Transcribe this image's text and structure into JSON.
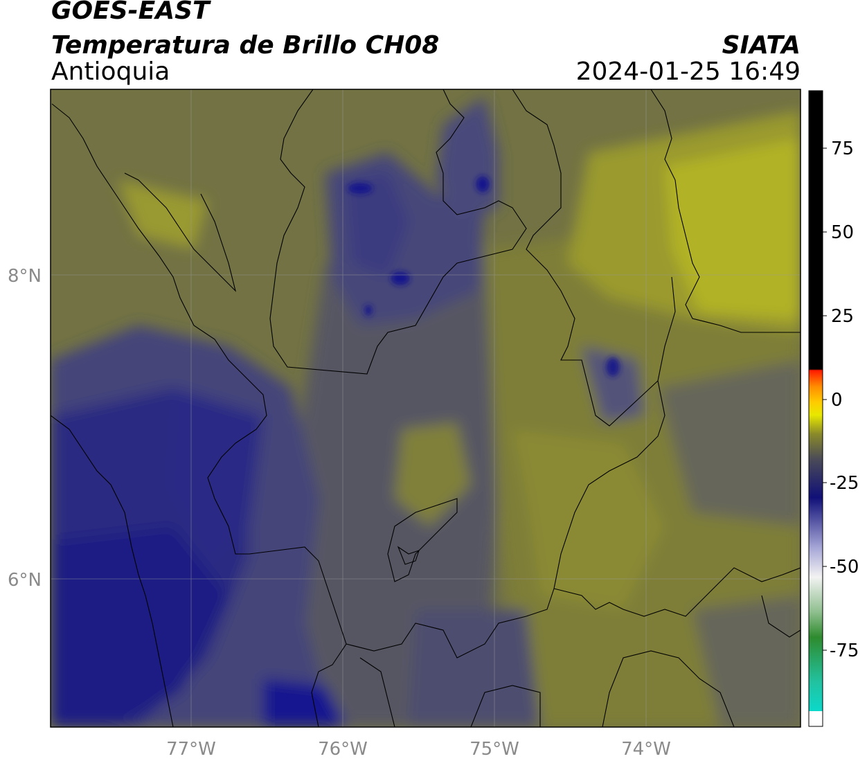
{
  "header": {
    "satellite": "GOES-EAST",
    "product": "Temperatura de Brillo CH08",
    "region": "Antioquia",
    "organization": "SIATA",
    "timestamp": "2024-01-25 16:49"
  },
  "map": {
    "lon_labels": [
      "77°W",
      "76°W",
      "75°W",
      "74°W"
    ],
    "lat_labels": [
      "8°N",
      "6°N"
    ]
  },
  "colorbar": {
    "ticks": [
      "75",
      "50",
      "25",
      "0",
      "-25",
      "-50",
      "-75"
    ],
    "colors": {
      "cyan": "#00e5e0",
      "green": "#2e8b2e",
      "white": "#f2f2f2",
      "navy": "#101078",
      "gray": "#4a4a58",
      "olive": "#8a8a2a",
      "yellow": "#e8e800",
      "orange": "#ff8c00",
      "red": "#ff1a00",
      "black": "#000000"
    }
  },
  "colors": {
    "olive_dark": "#5e5e3a",
    "olive": "#76763a",
    "olive_light": "#8c8c34",
    "yellow_olive": "#aaaa28",
    "slate": "#505062",
    "slate_blue": "#3a3a74",
    "navy": "#1c1c7c",
    "deep_navy": "#0c0c86"
  }
}
